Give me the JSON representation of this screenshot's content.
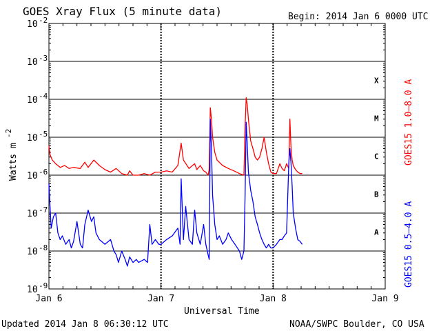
{
  "header": {
    "title": "GOES Xray Flux (5 minute data)",
    "begin": "Begin:  2014 Jan 6 0000 UTC"
  },
  "footer": {
    "updated": "Updated 2014 Jan  8 06:30:12 UTC",
    "credit": "NOAA/SWPC Boulder, CO USA"
  },
  "chart_data": {
    "type": "line",
    "title": "GOES Xray Flux (5 minute data)",
    "xlabel": "Universal Time",
    "ylabel": "Watts m",
    "ylabel_sup": "-2",
    "y_scale": "log",
    "ylim": [
      1e-09,
      0.01
    ],
    "xlim": [
      0,
      3
    ],
    "x_unit": "days since 2014 Jan 6 0000 UTC",
    "x_ticks": [
      {
        "value": 0,
        "label": "Jan 6"
      },
      {
        "value": 1,
        "label": "Jan 7"
      },
      {
        "value": 2,
        "label": "Jan 8"
      },
      {
        "value": 3,
        "label": "Jan 9"
      }
    ],
    "y_ticks": [
      {
        "exp": -9,
        "base": "10",
        "sup": "-9"
      },
      {
        "exp": -8,
        "base": "10",
        "sup": "-8"
      },
      {
        "exp": -7,
        "base": "10",
        "sup": "-7"
      },
      {
        "exp": -6,
        "base": "10",
        "sup": "-6"
      },
      {
        "exp": -5,
        "base": "10",
        "sup": "-5"
      },
      {
        "exp": -4,
        "base": "10",
        "sup": "-4"
      },
      {
        "exp": -3,
        "base": "10",
        "sup": "-3"
      },
      {
        "exp": -2,
        "base": "10",
        "sup": "-2"
      }
    ],
    "flare_classes": [
      {
        "label": "A",
        "exp": -7.5
      },
      {
        "label": "B",
        "exp": -6.5
      },
      {
        "label": "C",
        "exp": -5.5
      },
      {
        "label": "M",
        "exp": -4.5
      },
      {
        "label": "X",
        "exp": -3.5
      }
    ],
    "grid": "horizontal lines at each decade, dotted verticals at day boundaries",
    "series": [
      {
        "name": "GOES15 1.0–8.0 A",
        "color": "#ff0000",
        "x": [
          0,
          0.01,
          0.03,
          0.06,
          0.1,
          0.14,
          0.18,
          0.22,
          0.28,
          0.32,
          0.35,
          0.4,
          0.45,
          0.5,
          0.55,
          0.6,
          0.65,
          0.7,
          0.72,
          0.75,
          0.8,
          0.85,
          0.9,
          0.95,
          1.0,
          1.05,
          1.1,
          1.15,
          1.18,
          1.2,
          1.25,
          1.3,
          1.32,
          1.35,
          1.38,
          1.4,
          1.42,
          1.43,
          1.44,
          1.45,
          1.46,
          1.48,
          1.5,
          1.55,
          1.6,
          1.65,
          1.7,
          1.74,
          1.75,
          1.76,
          1.77,
          1.78,
          1.79,
          1.8,
          1.82,
          1.84,
          1.86,
          1.88,
          1.9,
          1.92,
          1.94,
          1.96,
          1.98,
          2.0,
          2.03,
          2.06,
          2.08,
          2.1,
          2.12,
          2.14,
          2.15,
          2.16,
          2.17,
          2.18,
          2.2,
          2.22,
          2.24,
          2.26
        ],
        "y": [
          6e-06,
          3.5e-06,
          2.5e-06,
          2e-06,
          1.6e-06,
          1.8e-06,
          1.5e-06,
          1.6e-06,
          1.5e-06,
          2.2e-06,
          1.6e-06,
          2.5e-06,
          1.8e-06,
          1.4e-06,
          1.2e-06,
          1.5e-06,
          1.1e-06,
          1e-06,
          1.3e-06,
          1e-06,
          1e-06,
          1.1e-06,
          1e-06,
          1.2e-06,
          1.2e-06,
          1.3e-06,
          1.2e-06,
          1.8e-06,
          7e-06,
          2.5e-06,
          1.5e-06,
          2e-06,
          1.4e-06,
          1.8e-06,
          1.3e-06,
          1.2e-06,
          1e-06,
          1.4e-06,
          6e-05,
          3e-05,
          1e-05,
          4e-06,
          2.5e-06,
          1.8e-06,
          1.5e-06,
          1.3e-06,
          1.1e-06,
          1e-06,
          2e-05,
          0.00011,
          7e-05,
          3e-05,
          1.5e-05,
          8e-06,
          5e-06,
          3e-06,
          2.5e-06,
          3e-06,
          5e-06,
          1e-05,
          4e-06,
          2e-06,
          1.2e-06,
          1.1e-06,
          1.1e-06,
          2e-06,
          1.5e-06,
          1.3e-06,
          2e-06,
          1.5e-06,
          3e-05,
          5e-06,
          2.5e-06,
          1.8e-06,
          1.4e-06,
          1.2e-06,
          1.1e-06,
          1.1e-06
        ]
      },
      {
        "name": "GOES15 0.5–4.0 A",
        "color": "#0000ff",
        "x": [
          0,
          0.01,
          0.02,
          0.04,
          0.06,
          0.08,
          0.1,
          0.12,
          0.15,
          0.18,
          0.2,
          0.22,
          0.25,
          0.28,
          0.3,
          0.32,
          0.35,
          0.38,
          0.4,
          0.42,
          0.45,
          0.5,
          0.55,
          0.58,
          0.6,
          0.62,
          0.65,
          0.68,
          0.7,
          0.72,
          0.75,
          0.78,
          0.8,
          0.85,
          0.88,
          0.9,
          0.92,
          0.95,
          0.98,
          1.0,
          1.05,
          1.1,
          1.15,
          1.17,
          1.18,
          1.2,
          1.22,
          1.25,
          1.28,
          1.3,
          1.32,
          1.35,
          1.38,
          1.4,
          1.42,
          1.43,
          1.44,
          1.45,
          1.46,
          1.48,
          1.5,
          1.52,
          1.55,
          1.58,
          1.6,
          1.63,
          1.66,
          1.7,
          1.72,
          1.74,
          1.75,
          1.76,
          1.77,
          1.78,
          1.8,
          1.82,
          1.84,
          1.86,
          1.88,
          1.9,
          1.92,
          1.94,
          1.96,
          1.98,
          2.0,
          2.03,
          2.06,
          2.08,
          2.1,
          2.12,
          2.14,
          2.15,
          2.16,
          2.17,
          2.18,
          2.2,
          2.22,
          2.24,
          2.26
        ],
        "y": [
          6e-07,
          1.5e-07,
          4e-08,
          8e-08,
          1e-07,
          3e-08,
          2e-08,
          2.5e-08,
          1.5e-08,
          2e-08,
          1.2e-08,
          1.8e-08,
          6e-08,
          1.5e-08,
          1.2e-08,
          5e-08,
          1.2e-07,
          6e-08,
          8e-08,
          3e-08,
          2e-08,
          1.5e-08,
          2e-08,
          1e-08,
          8e-09,
          5e-09,
          1e-08,
          6e-09,
          4e-09,
          7e-09,
          5e-09,
          6e-09,
          5e-09,
          6e-09,
          5e-09,
          5e-08,
          1.5e-08,
          2e-08,
          1.5e-08,
          1.5e-08,
          2e-08,
          2.5e-08,
          4e-08,
          1.5e-08,
          8e-07,
          2e-08,
          1.5e-07,
          2e-08,
          1.5e-08,
          1.2e-07,
          3e-08,
          1.5e-08,
          5e-08,
          1.5e-08,
          8e-09,
          6e-09,
          3e-05,
          5e-06,
          3e-07,
          5e-08,
          2e-08,
          2.5e-08,
          1.5e-08,
          2e-08,
          3e-08,
          2e-08,
          1.5e-08,
          1e-08,
          6e-09,
          1e-08,
          3e-07,
          2.5e-05,
          6e-06,
          1.2e-06,
          4e-07,
          2e-07,
          8e-08,
          5e-08,
          3e-08,
          2e-08,
          1.5e-08,
          1.2e-08,
          1.5e-08,
          1.2e-08,
          1.2e-08,
          1.5e-08,
          2e-08,
          2e-08,
          2.5e-08,
          3e-08,
          2e-06,
          5e-06,
          2e-06,
          5e-07,
          1e-07,
          4e-08,
          2e-08,
          1.8e-08,
          1.5e-08
        ]
      }
    ]
  }
}
